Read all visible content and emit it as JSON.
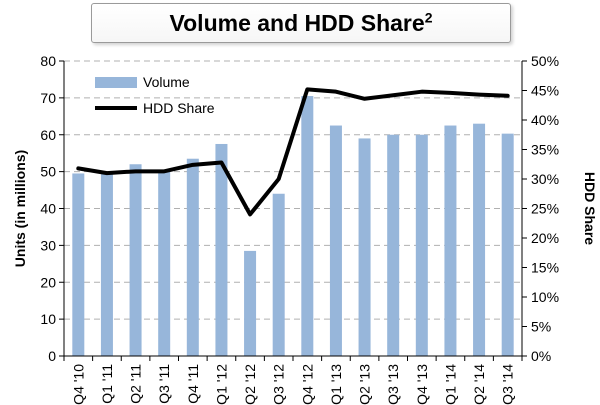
{
  "header": {
    "title": "Volume and HDD Share",
    "title_sup": "2"
  },
  "chart_data": {
    "type": "bar",
    "title": "Volume and HDD Share",
    "title_superscript": "2",
    "categories": [
      "Q4 '10",
      "Q1 '11",
      "Q2 '11",
      "Q3 '11",
      "Q4 '11",
      "Q1 '12",
      "Q2 '12",
      "Q3 '12",
      "Q4 '12",
      "Q1 '13",
      "Q2 '13",
      "Q3 '13",
      "Q4 '13",
      "Q1 '14",
      "Q2 '14",
      "Q3 '14"
    ],
    "series": [
      {
        "name": "Volume",
        "type": "bar",
        "axis": "left",
        "color": "#97b6da",
        "values": [
          49.5,
          50.0,
          52.0,
          50.5,
          53.5,
          57.5,
          28.5,
          44.0,
          70.5,
          62.5,
          59.0,
          60.0,
          60.0,
          62.5,
          63.0,
          60.3
        ]
      },
      {
        "name": "HDD Share",
        "type": "line",
        "axis": "right",
        "color": "#000000",
        "values": [
          31.8,
          31.0,
          31.3,
          31.3,
          32.4,
          32.8,
          24.0,
          30.0,
          45.2,
          44.8,
          43.6,
          44.2,
          44.8,
          44.6,
          44.3,
          44.1
        ]
      }
    ],
    "yaxis_left": {
      "label": "Units (in millions)",
      "min": 0,
      "max": 80,
      "ticks": [
        0,
        10,
        20,
        30,
        40,
        50,
        60,
        70,
        80
      ]
    },
    "yaxis_right": {
      "label": "HDD Share",
      "min": 0,
      "max": 50,
      "ticks": [
        "0%",
        "5%",
        "10%",
        "15%",
        "20%",
        "25%",
        "30%",
        "35%",
        "40%",
        "45%",
        "50%"
      ]
    },
    "grid": "horizontal dashed",
    "legend": "top-left"
  }
}
